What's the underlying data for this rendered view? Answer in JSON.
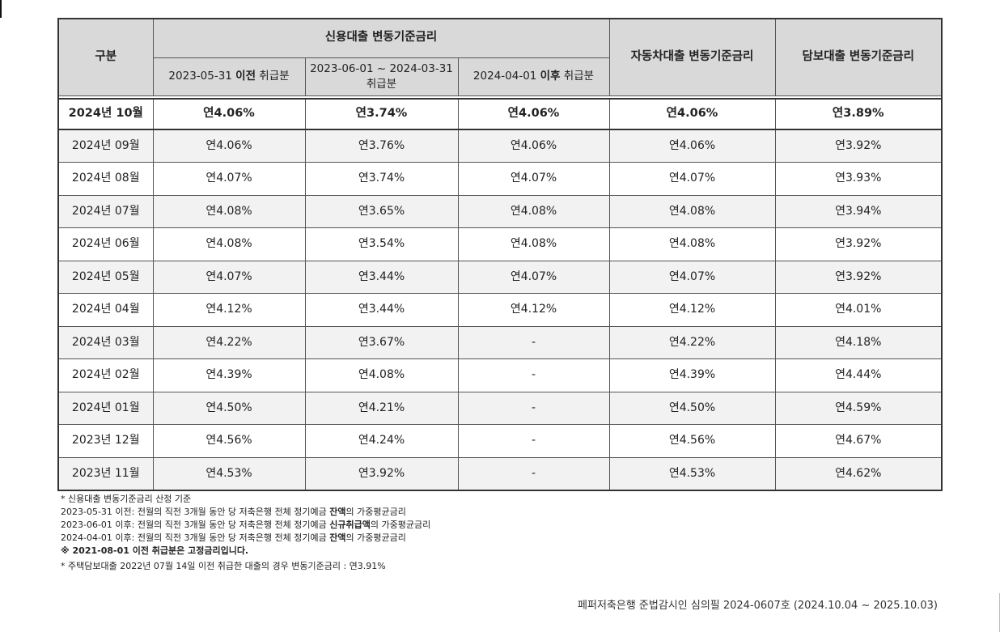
{
  "table": {
    "header": {
      "category": "구분",
      "credit_group": "신용대출 변동기준금리",
      "credit_sub": [
        {
          "prefix": "2023-05-31 ",
          "bold": "이전",
          "suffix": " 취급분"
        },
        {
          "prefix": "2023-06-01 ~ 2024-03-31 취급분",
          "bold": "",
          "suffix": ""
        },
        {
          "prefix": "2024-04-01 ",
          "bold": "이후",
          "suffix": " 취급분"
        }
      ],
      "auto": "자동차대출 변동기준금리",
      "mortgage": "담보대출 변동기준금리"
    },
    "current": {
      "month": "2024년 10월",
      "values": [
        "연4.06%",
        "연3.74%",
        "연4.06%",
        "연4.06%",
        "연3.89%"
      ]
    },
    "rows": [
      {
        "month": "2024년 09월",
        "values": [
          "연4.06%",
          "연3.76%",
          "연4.06%",
          "연4.06%",
          "연3.92%"
        ]
      },
      {
        "month": "2024년 08월",
        "values": [
          "연4.07%",
          "연3.74%",
          "연4.07%",
          "연4.07%",
          "연3.93%"
        ]
      },
      {
        "month": "2024년 07월",
        "values": [
          "연4.08%",
          "연3.65%",
          "연4.08%",
          "연4.08%",
          "연3.94%"
        ]
      },
      {
        "month": "2024년 06월",
        "values": [
          "연4.08%",
          "연3.54%",
          "연4.08%",
          "연4.08%",
          "연3.92%"
        ]
      },
      {
        "month": "2024년 05월",
        "values": [
          "연4.07%",
          "연3.44%",
          "연4.07%",
          "연4.07%",
          "연3.92%"
        ]
      },
      {
        "month": "2024년 04월",
        "values": [
          "연4.12%",
          "연3.44%",
          "연4.12%",
          "연4.12%",
          "연4.01%"
        ]
      },
      {
        "month": "2024년 03월",
        "values": [
          "연4.22%",
          "연3.67%",
          "-",
          "연4.22%",
          "연4.18%"
        ]
      },
      {
        "month": "2024년 02월",
        "values": [
          "연4.39%",
          "연4.08%",
          "-",
          "연4.39%",
          "연4.44%"
        ]
      },
      {
        "month": "2024년 01월",
        "values": [
          "연4.50%",
          "연4.21%",
          "-",
          "연4.50%",
          "연4.59%"
        ]
      },
      {
        "month": "2023년 12월",
        "values": [
          "연4.56%",
          "연4.24%",
          "-",
          "연4.56%",
          "연4.67%"
        ]
      },
      {
        "month": "2023년 11월",
        "values": [
          "연4.53%",
          "연3.92%",
          "-",
          "연4.53%",
          "연4.62%"
        ]
      }
    ]
  },
  "notes": {
    "title": "* 신용대출 변동기준금리 산정 기준",
    "basis": [
      {
        "prefix": "2023-05-31 이전: 전월의 직전 3개월 동안 당 저축은행 전체 정기예금 ",
        "bold": "잔액",
        "suffix": "의 가중평균금리"
      },
      {
        "prefix": "2023-06-01 이후: 전월의 직전 3개월 동안 당 저축은행 전체 정기예금 ",
        "bold": "신규취급액",
        "suffix": "의 가중평균금리"
      },
      {
        "prefix": "2024-04-01 이후: 전월의 직전 3개월 동안 당 저축은행 전체 정기예금 ",
        "bold": "잔액",
        "suffix": "의 가중평균금리"
      }
    ],
    "fixed_rate_notice": "※ 2021-08-01 이전 취급분은 고정금리입니다.",
    "mortgage_note": "* 주택담보대출 2022년 07월 14일 이전 취급한 대출의 경우 변동기준금리 : 연3.91%"
  },
  "footer": {
    "compliance": "페퍼저축은행 준법감시인 심의필 2024-0607호 (2024.10.04 ~ 2025.10.03)"
  }
}
